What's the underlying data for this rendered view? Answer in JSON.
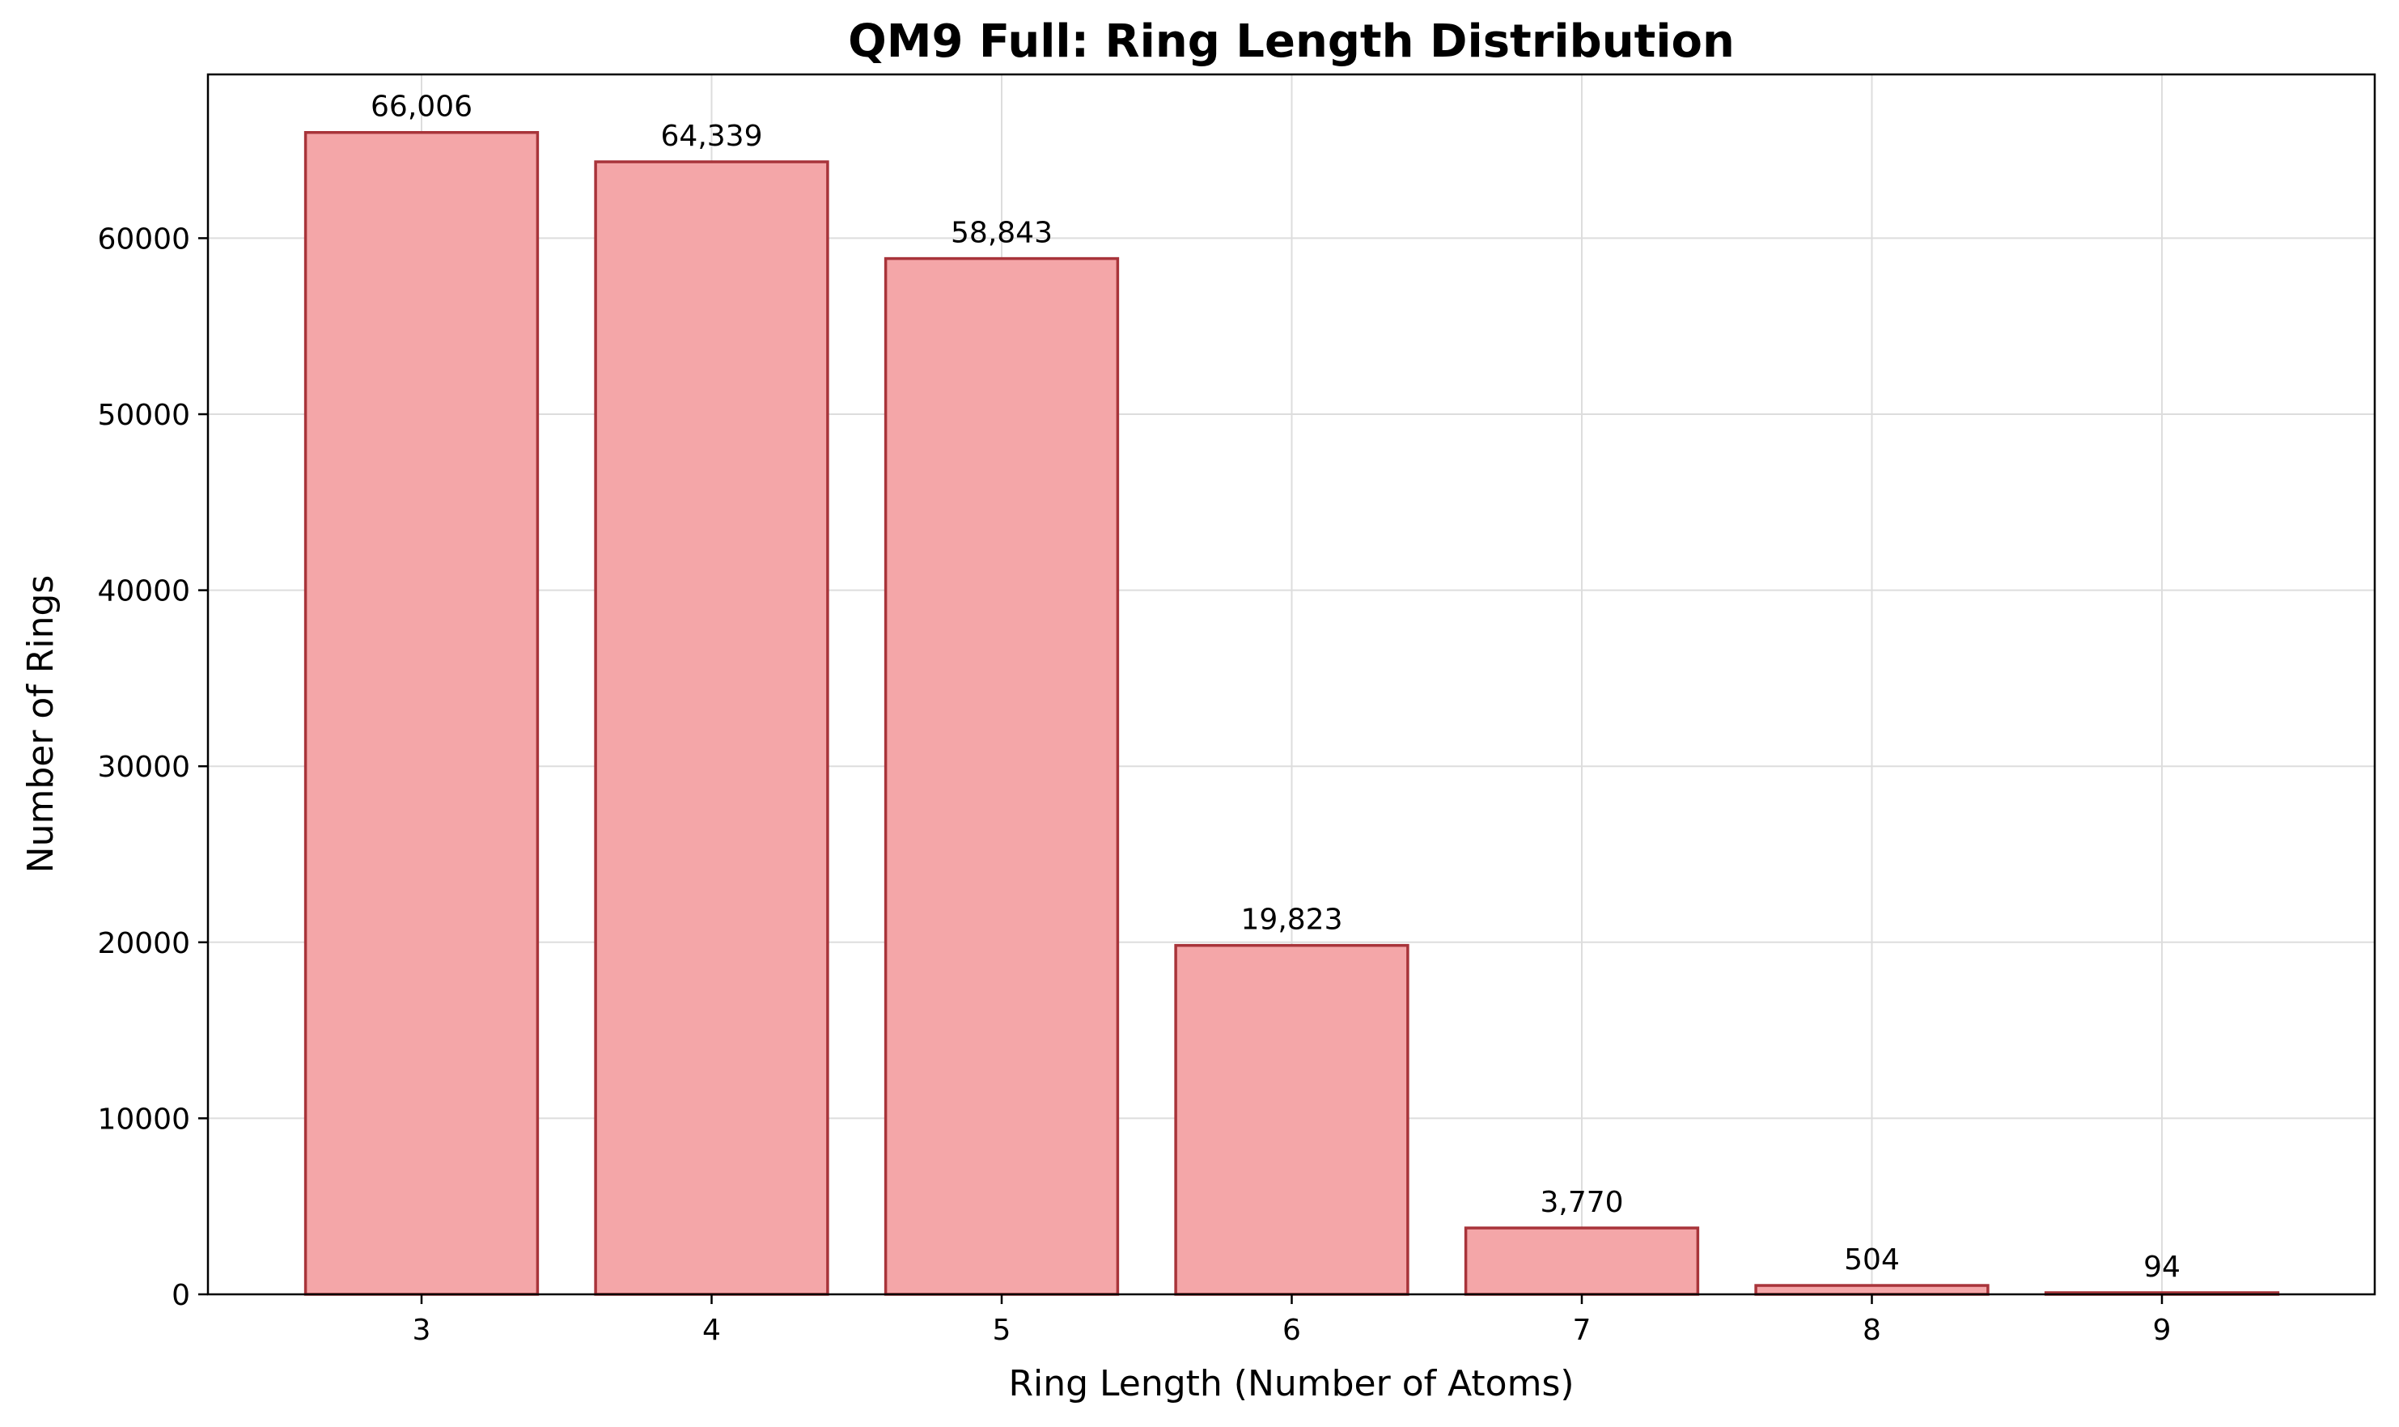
{
  "chart_data": {
    "type": "bar",
    "title": "QM9 Full: Ring Length Distribution",
    "xlabel": "Ring Length (Number of Atoms)",
    "ylabel": "Number of Rings",
    "categories": [
      "3",
      "4",
      "5",
      "6",
      "7",
      "8",
      "9"
    ],
    "values": [
      66006,
      64339,
      58843,
      19823,
      3770,
      504,
      94
    ],
    "data_labels": [
      "66,006",
      "64,339",
      "58,843",
      "19,823",
      "3,770",
      "504",
      "94"
    ],
    "ylim": [
      0,
      69303
    ],
    "yticks": [
      0,
      10000,
      20000,
      30000,
      40000,
      50000,
      60000
    ],
    "ytick_labels": [
      "0",
      "10000",
      "20000",
      "30000",
      "40000",
      "50000",
      "60000"
    ],
    "grid": true,
    "colors": {
      "bar_fill": "#f4a6a8",
      "bar_edge": "#a8343a",
      "grid": "#dddddd",
      "axis": "#000000"
    }
  }
}
